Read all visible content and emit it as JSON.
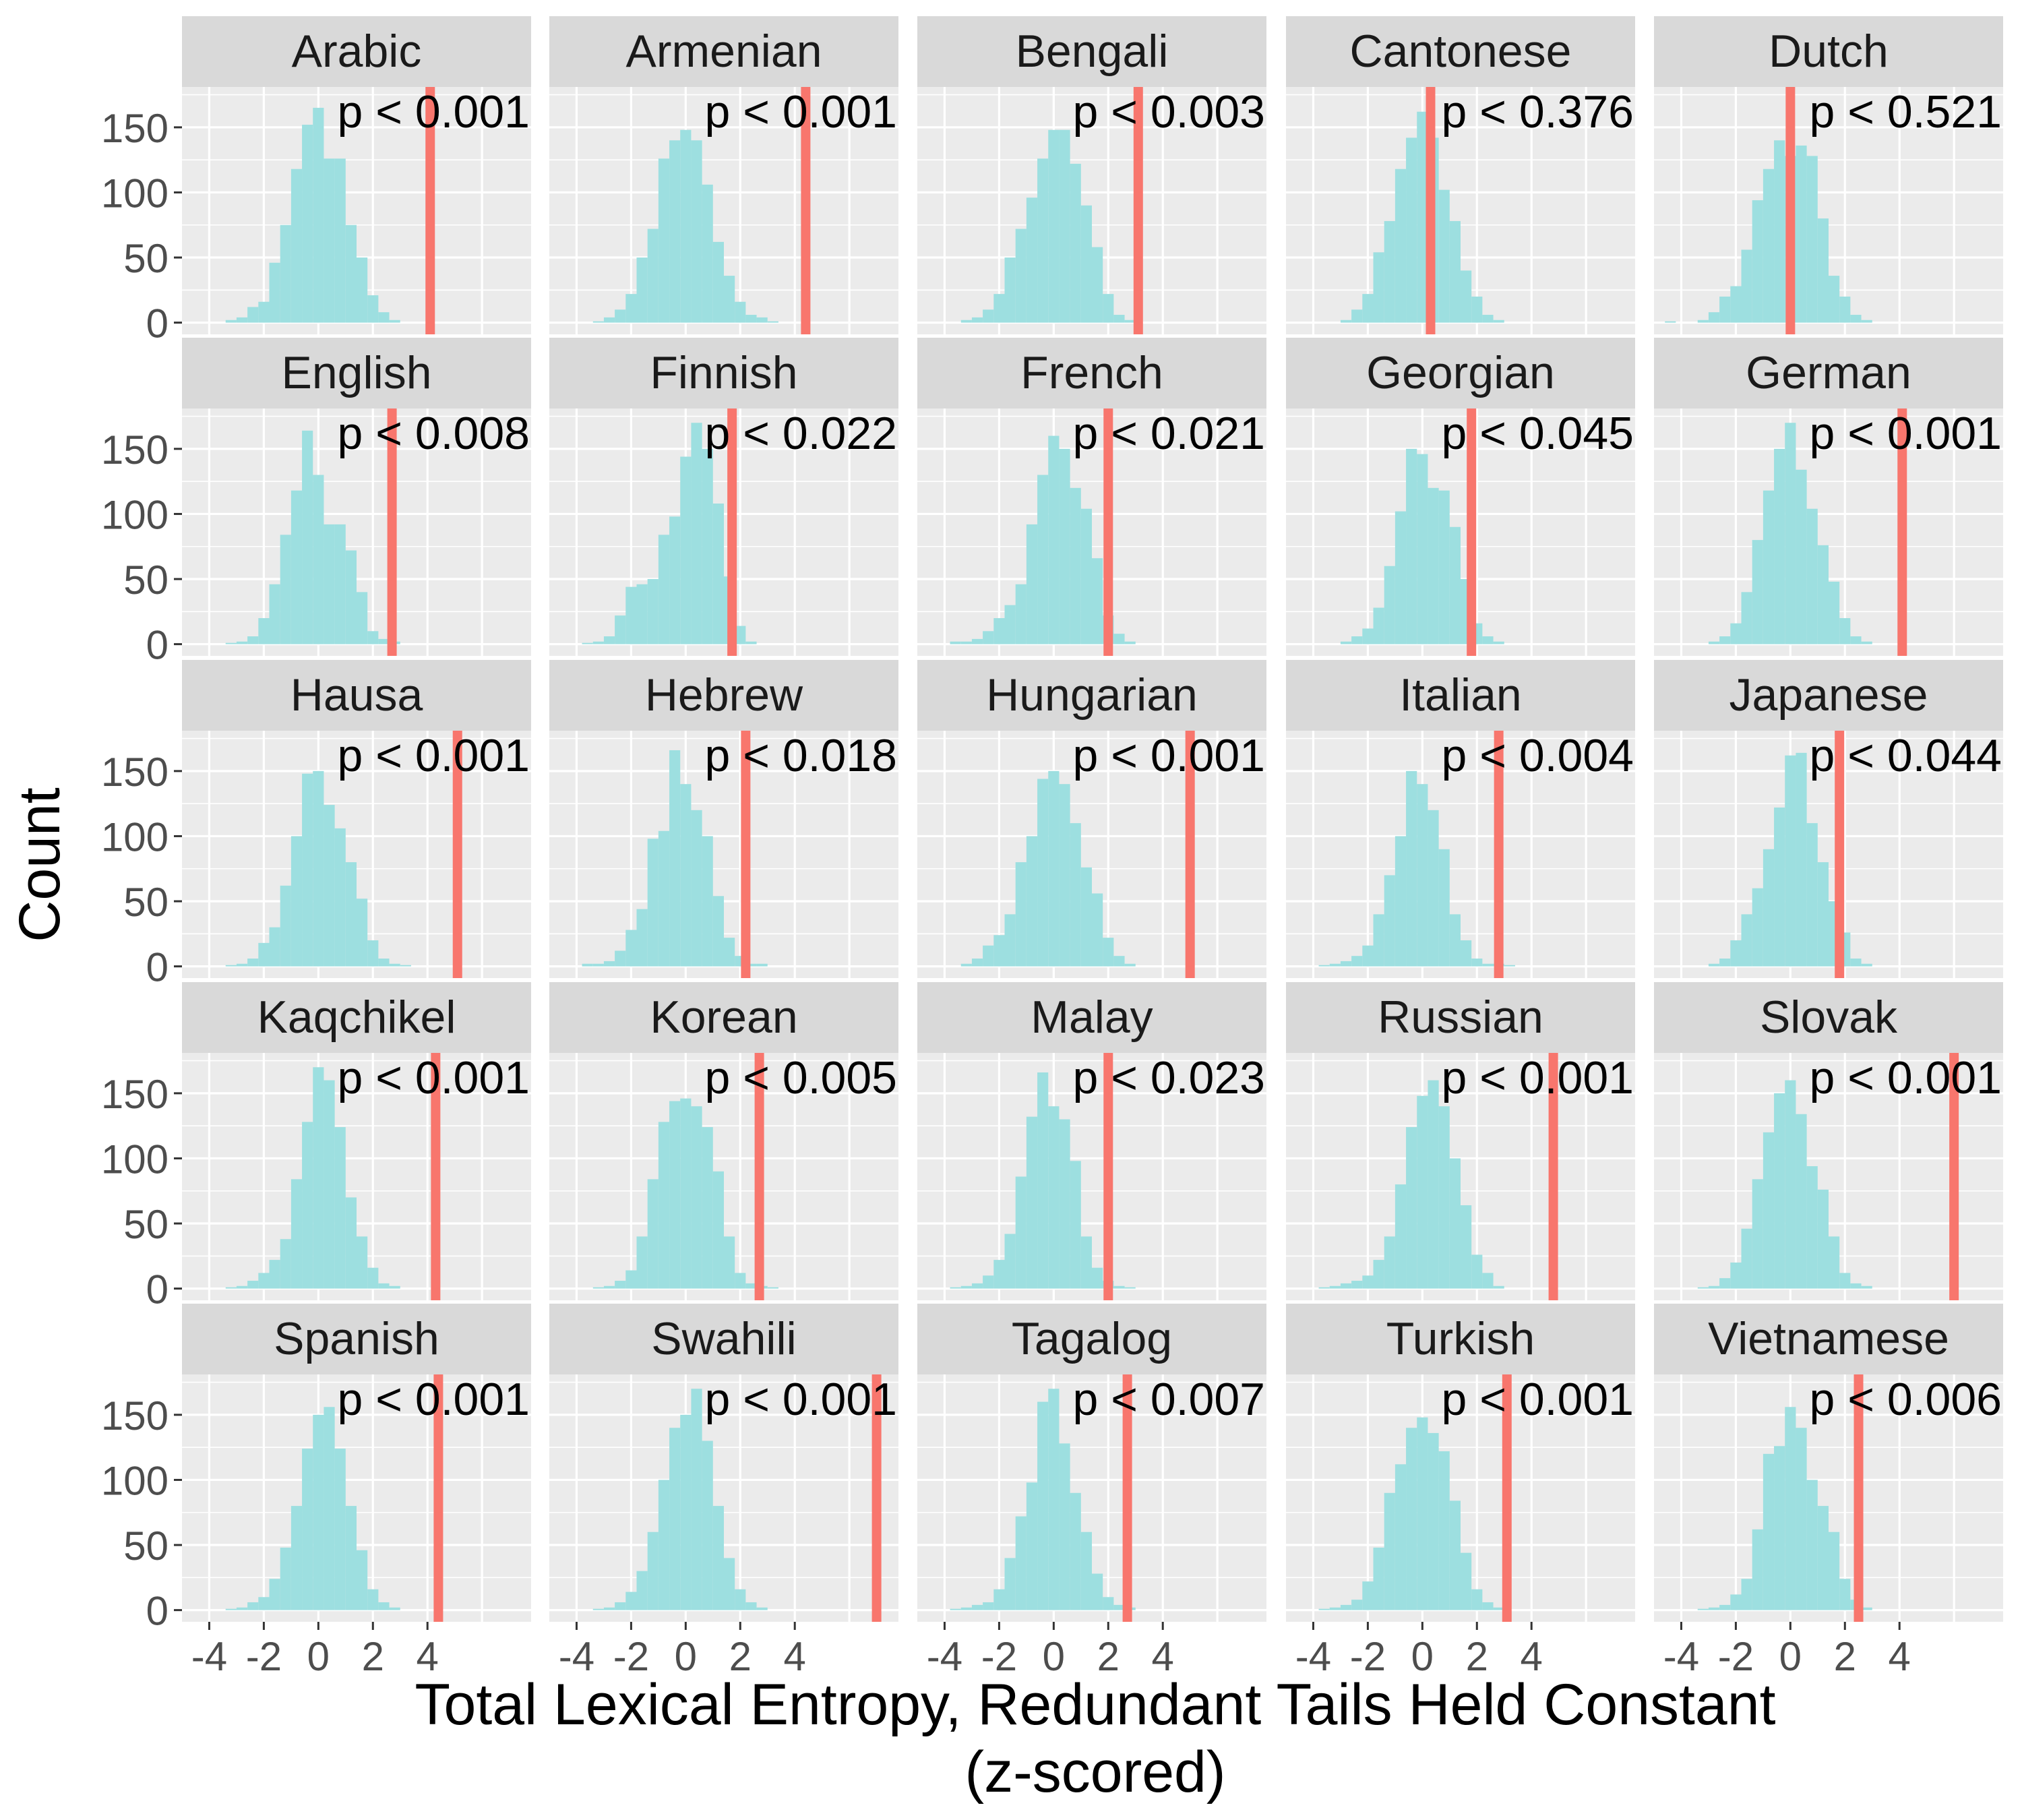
{
  "xlabel_line1": "Total Lexical Entropy, Redundant Tails Held Constant",
  "xlabel_line2": "(z-scored)",
  "ylabel": "Count",
  "chart_data": {
    "type": "histogram-facets",
    "xlabel": "Total Lexical Entropy, Redundant Tails Held Constant (z-scored)",
    "ylabel": "Count",
    "x_ticks": [
      -4,
      -2,
      0,
      2,
      4
    ],
    "x_tick_labels": [
      "-4",
      "-2",
      "0",
      "2",
      "4"
    ],
    "y_ticks": [
      0,
      50,
      100,
      150
    ],
    "y_tick_labels": [
      "0",
      "50",
      "100",
      "150"
    ],
    "xlim": [
      -5.0,
      7.8
    ],
    "ylim": [
      -9,
      181
    ],
    "bin_width": 0.4,
    "histogram_color": "#9ddfe0",
    "marker_color": "#f8766d",
    "panel_background": "#ebebeb",
    "strip_background": "#d9d9d9",
    "grid": true,
    "panels": [
      {
        "language": "Arabic",
        "p_label": "p < 0.001",
        "observed": 4.1,
        "centers": [
          -3.2,
          -2.8,
          -2.4,
          -2.0,
          -1.6,
          -1.2,
          -0.8,
          -0.4,
          0.0,
          0.4,
          0.8,
          1.2,
          1.6,
          2.0,
          2.4,
          2.8
        ],
        "counts": [
          2,
          4,
          12,
          16,
          46,
          75,
          118,
          152,
          165,
          126,
          126,
          75,
          50,
          21,
          8,
          2
        ]
      },
      {
        "language": "Armenian",
        "p_label": "p < 0.001",
        "observed": 4.4,
        "centers": [
          -3.2,
          -2.8,
          -2.4,
          -2.0,
          -1.6,
          -1.2,
          -0.8,
          -0.4,
          0.0,
          0.4,
          0.8,
          1.2,
          1.6,
          2.0,
          2.4,
          2.8,
          3.2
        ],
        "counts": [
          1,
          4,
          10,
          22,
          50,
          72,
          126,
          140,
          148,
          140,
          106,
          62,
          36,
          16,
          6,
          4,
          1
        ]
      },
      {
        "language": "Bengali",
        "p_label": "p < 0.003",
        "observed": 3.1,
        "centers": [
          -3.2,
          -2.8,
          -2.4,
          -2.0,
          -1.6,
          -1.2,
          -0.8,
          -0.4,
          0.0,
          0.4,
          0.8,
          1.2,
          1.6,
          2.0,
          2.4,
          2.8
        ],
        "counts": [
          2,
          4,
          10,
          22,
          50,
          72,
          96,
          126,
          148,
          148,
          122,
          90,
          58,
          22,
          6,
          2
        ]
      },
      {
        "language": "Cantonese",
        "p_label": "p < 0.376",
        "observed": 0.3,
        "centers": [
          -2.8,
          -2.4,
          -2.0,
          -1.6,
          -1.2,
          -0.8,
          -0.4,
          0.0,
          0.4,
          0.8,
          1.2,
          1.6,
          2.0,
          2.4,
          2.8
        ],
        "counts": [
          2,
          10,
          22,
          54,
          78,
          118,
          142,
          162,
          142,
          102,
          78,
          40,
          20,
          6,
          2
        ]
      },
      {
        "language": "Dutch",
        "p_label": "p < 0.521",
        "observed": 0.0,
        "centers": [
          -4.4,
          -3.2,
          -2.8,
          -2.4,
          -2.0,
          -1.6,
          -1.2,
          -0.8,
          -0.4,
          0.0,
          0.4,
          0.8,
          1.2,
          1.6,
          2.0,
          2.4,
          2.8
        ],
        "counts": [
          1,
          2,
          8,
          20,
          28,
          56,
          94,
          118,
          140,
          128,
          136,
          128,
          80,
          36,
          20,
          6,
          2
        ]
      },
      {
        "language": "English",
        "p_label": "p < 0.008",
        "observed": 2.7,
        "centers": [
          -3.2,
          -2.8,
          -2.4,
          -2.0,
          -1.6,
          -1.2,
          -0.8,
          -0.4,
          0.0,
          0.4,
          0.8,
          1.2,
          1.6,
          2.0,
          2.4,
          2.8
        ],
        "counts": [
          1,
          2,
          6,
          20,
          46,
          84,
          118,
          164,
          130,
          92,
          92,
          72,
          40,
          10,
          4,
          2
        ]
      },
      {
        "language": "Finnish",
        "p_label": "p < 0.022",
        "observed": 1.7,
        "centers": [
          -3.6,
          -3.2,
          -2.8,
          -2.4,
          -2.0,
          -1.6,
          -1.2,
          -0.8,
          -0.4,
          0.0,
          0.4,
          0.8,
          1.2,
          1.6,
          2.0,
          2.4
        ],
        "counts": [
          1,
          2,
          6,
          22,
          44,
          46,
          50,
          84,
          98,
          144,
          170,
          150,
          108,
          52,
          14,
          2
        ]
      },
      {
        "language": "French",
        "p_label": "p < 0.021",
        "observed": 2.0,
        "centers": [
          -3.6,
          -3.2,
          -2.8,
          -2.4,
          -2.0,
          -1.6,
          -1.2,
          -0.8,
          -0.4,
          0.0,
          0.4,
          0.8,
          1.2,
          1.6,
          2.0,
          2.4,
          2.8
        ],
        "counts": [
          2,
          2,
          4,
          10,
          20,
          30,
          46,
          92,
          130,
          160,
          150,
          120,
          104,
          66,
          22,
          8,
          2
        ]
      },
      {
        "language": "Georgian",
        "p_label": "p < 0.045",
        "observed": 1.8,
        "centers": [
          -2.8,
          -2.4,
          -2.0,
          -1.6,
          -1.2,
          -0.8,
          -0.4,
          0.0,
          0.4,
          0.8,
          1.2,
          1.6,
          2.0,
          2.4,
          2.8
        ],
        "counts": [
          2,
          6,
          12,
          28,
          60,
          102,
          150,
          146,
          120,
          118,
          90,
          50,
          16,
          6,
          2
        ]
      },
      {
        "language": "German",
        "p_label": "p < 0.001",
        "observed": 4.1,
        "centers": [
          -2.8,
          -2.4,
          -2.0,
          -1.6,
          -1.2,
          -0.8,
          -0.4,
          0.0,
          0.4,
          0.8,
          1.2,
          1.6,
          2.0,
          2.4,
          2.8
        ],
        "counts": [
          2,
          6,
          16,
          40,
          80,
          118,
          150,
          170,
          134,
          104,
          76,
          48,
          20,
          6,
          2
        ]
      },
      {
        "language": "Hausa",
        "p_label": "p < 0.001",
        "observed": 5.1,
        "centers": [
          -3.2,
          -2.8,
          -2.4,
          -2.0,
          -1.6,
          -1.2,
          -0.8,
          -0.4,
          0.0,
          0.4,
          0.8,
          1.2,
          1.6,
          2.0,
          2.4,
          2.8,
          3.2
        ],
        "counts": [
          1,
          2,
          6,
          18,
          30,
          62,
          100,
          148,
          150,
          124,
          106,
          80,
          52,
          20,
          6,
          2,
          1
        ]
      },
      {
        "language": "Hebrew",
        "p_label": "p < 0.018",
        "observed": 2.2,
        "centers": [
          -3.6,
          -3.2,
          -2.8,
          -2.4,
          -2.0,
          -1.6,
          -1.2,
          -0.8,
          -0.4,
          0.0,
          0.4,
          0.8,
          1.2,
          1.6,
          2.0,
          2.4,
          2.8
        ],
        "counts": [
          2,
          2,
          4,
          12,
          28,
          44,
          98,
          104,
          166,
          140,
          120,
          100,
          54,
          22,
          8,
          2,
          2
        ]
      },
      {
        "language": "Hungarian",
        "p_label": "p < 0.001",
        "observed": 5.0,
        "centers": [
          -3.2,
          -2.8,
          -2.4,
          -2.0,
          -1.6,
          -1.2,
          -0.8,
          -0.4,
          0.0,
          0.4,
          0.8,
          1.2,
          1.6,
          2.0,
          2.4,
          2.8
        ],
        "counts": [
          2,
          6,
          16,
          24,
          40,
          80,
          100,
          144,
          150,
          140,
          110,
          76,
          56,
          22,
          8,
          2
        ]
      },
      {
        "language": "Italian",
        "p_label": "p < 0.004",
        "observed": 2.8,
        "centers": [
          -3.6,
          -3.2,
          -2.8,
          -2.4,
          -2.0,
          -1.6,
          -1.2,
          -0.8,
          -0.4,
          0.0,
          0.4,
          0.8,
          1.2,
          1.6,
          2.0,
          2.4,
          2.8,
          3.2
        ],
        "counts": [
          1,
          2,
          4,
          8,
          16,
          40,
          70,
          100,
          150,
          140,
          120,
          90,
          40,
          20,
          6,
          2,
          2,
          1
        ]
      },
      {
        "language": "Japanese",
        "p_label": "p < 0.044",
        "observed": 1.8,
        "centers": [
          -2.8,
          -2.4,
          -2.0,
          -1.6,
          -1.2,
          -0.8,
          -0.4,
          0.0,
          0.4,
          0.8,
          1.2,
          1.6,
          2.0,
          2.4,
          2.8
        ],
        "counts": [
          2,
          6,
          20,
          40,
          60,
          90,
          122,
          162,
          164,
          110,
          80,
          50,
          26,
          6,
          2
        ]
      },
      {
        "language": "Kaqchikel",
        "p_label": "p < 0.001",
        "observed": 4.3,
        "centers": [
          -3.2,
          -2.8,
          -2.4,
          -2.0,
          -1.6,
          -1.2,
          -0.8,
          -0.4,
          0.0,
          0.4,
          0.8,
          1.2,
          1.6,
          2.0,
          2.4,
          2.8
        ],
        "counts": [
          1,
          2,
          6,
          12,
          22,
          38,
          84,
          128,
          170,
          160,
          124,
          70,
          40,
          16,
          4,
          2
        ]
      },
      {
        "language": "Korean",
        "p_label": "p < 0.005",
        "observed": 2.7,
        "centers": [
          -3.2,
          -2.8,
          -2.4,
          -2.0,
          -1.6,
          -1.2,
          -0.8,
          -0.4,
          0.0,
          0.4,
          0.8,
          1.2,
          1.6,
          2.0,
          2.4,
          2.8,
          3.2
        ],
        "counts": [
          1,
          2,
          6,
          14,
          40,
          84,
          128,
          144,
          146,
          140,
          124,
          90,
          40,
          12,
          4,
          2,
          1
        ]
      },
      {
        "language": "Malay",
        "p_label": "p < 0.023",
        "observed": 2.0,
        "centers": [
          -3.6,
          -3.2,
          -2.8,
          -2.4,
          -2.0,
          -1.6,
          -1.2,
          -0.8,
          -0.4,
          0.0,
          0.4,
          0.8,
          1.2,
          1.6,
          2.0,
          2.4,
          2.8
        ],
        "counts": [
          1,
          2,
          4,
          10,
          22,
          42,
          86,
          132,
          166,
          140,
          130,
          98,
          40,
          16,
          6,
          2,
          1
        ]
      },
      {
        "language": "Russian",
        "p_label": "p < 0.001",
        "observed": 4.8,
        "centers": [
          -3.6,
          -3.2,
          -2.8,
          -2.4,
          -2.0,
          -1.6,
          -1.2,
          -0.8,
          -0.4,
          0.0,
          0.4,
          0.8,
          1.2,
          1.6,
          2.0,
          2.4,
          2.8
        ],
        "counts": [
          1,
          2,
          4,
          6,
          10,
          22,
          40,
          80,
          124,
          148,
          160,
          140,
          100,
          64,
          26,
          12,
          2
        ]
      },
      {
        "language": "Slovak",
        "p_label": "p < 0.001",
        "observed": 6.0,
        "centers": [
          -3.2,
          -2.8,
          -2.4,
          -2.0,
          -1.6,
          -1.2,
          -0.8,
          -0.4,
          0.0,
          0.4,
          0.8,
          1.2,
          1.6,
          2.0,
          2.4,
          2.8
        ],
        "counts": [
          1,
          2,
          8,
          20,
          46,
          84,
          120,
          150,
          160,
          134,
          94,
          76,
          40,
          12,
          4,
          2
        ]
      },
      {
        "language": "Spanish",
        "p_label": "p < 0.001",
        "observed": 4.4,
        "centers": [
          -3.2,
          -2.8,
          -2.4,
          -2.0,
          -1.6,
          -1.2,
          -0.8,
          -0.4,
          0.0,
          0.4,
          0.8,
          1.2,
          1.6,
          2.0,
          2.4,
          2.8
        ],
        "counts": [
          1,
          2,
          6,
          10,
          24,
          48,
          80,
          124,
          150,
          156,
          124,
          80,
          46,
          16,
          6,
          2
        ]
      },
      {
        "language": "Swahili",
        "p_label": "p < 0.001",
        "observed": 7.0,
        "centers": [
          -3.2,
          -2.8,
          -2.4,
          -2.0,
          -1.6,
          -1.2,
          -0.8,
          -0.4,
          0.0,
          0.4,
          0.8,
          1.2,
          1.6,
          2.0,
          2.4,
          2.8
        ],
        "counts": [
          1,
          2,
          6,
          14,
          30,
          60,
          100,
          140,
          150,
          170,
          130,
          80,
          40,
          16,
          6,
          2
        ]
      },
      {
        "language": "Tagalog",
        "p_label": "p < 0.007",
        "observed": 2.7,
        "centers": [
          -3.6,
          -3.2,
          -2.8,
          -2.4,
          -2.0,
          -1.6,
          -1.2,
          -0.8,
          -0.4,
          0.0,
          0.4,
          0.8,
          1.2,
          1.6,
          2.0,
          2.4,
          2.8
        ],
        "counts": [
          1,
          2,
          4,
          6,
          16,
          40,
          72,
          98,
          160,
          170,
          128,
          90,
          60,
          28,
          10,
          4,
          2
        ]
      },
      {
        "language": "Turkish",
        "p_label": "p < 0.001",
        "observed": 3.1,
        "centers": [
          -3.6,
          -3.2,
          -2.8,
          -2.4,
          -2.0,
          -1.6,
          -1.2,
          -0.8,
          -0.4,
          0.0,
          0.4,
          0.8,
          1.2,
          1.6,
          2.0,
          2.4,
          2.8
        ],
        "counts": [
          1,
          2,
          4,
          8,
          22,
          48,
          90,
          112,
          140,
          148,
          136,
          122,
          84,
          44,
          16,
          6,
          2
        ]
      },
      {
        "language": "Vietnamese",
        "p_label": "p < 0.006",
        "observed": 2.5,
        "centers": [
          -3.2,
          -2.8,
          -2.4,
          -2.0,
          -1.6,
          -1.2,
          -0.8,
          -0.4,
          0.0,
          0.4,
          0.8,
          1.2,
          1.6,
          2.0,
          2.4,
          2.8
        ],
        "counts": [
          1,
          2,
          4,
          12,
          24,
          62,
          120,
          126,
          156,
          140,
          100,
          80,
          60,
          24,
          8,
          2
        ]
      }
    ]
  }
}
